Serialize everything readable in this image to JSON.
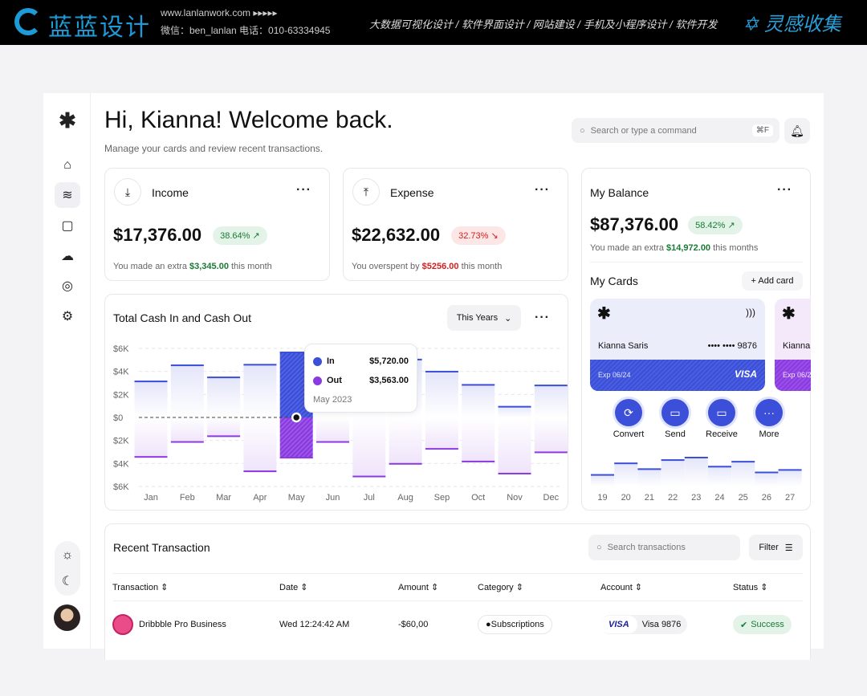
{
  "banner": {
    "logo": "蓝蓝设计",
    "site": "www.lanlanwork.com ▸▸▸▸▸",
    "contact": "微信：ben_lanlan    电话：010-63334945",
    "services": "大数据可视化设计  /  软件界面设计  /  网站建设  /  手机及小程序设计  /  软件开发",
    "brand": "灵感收集"
  },
  "header": {
    "title": "Hi, Kianna! Welcome back.",
    "subtitle": "Manage your cards and review recent transactions.",
    "search_placeholder": "Search or type a command",
    "shortcut": "⌘F"
  },
  "sidebar": {
    "items": [
      "home-icon",
      "layers-icon",
      "wallet-icon",
      "cloud-upload-icon",
      "chat-icon",
      "settings-icon"
    ],
    "active": "layers-icon",
    "theme": [
      "light",
      "dark"
    ]
  },
  "income": {
    "label": "Income",
    "amount": "$17,376.00",
    "change": "38.64%",
    "note_pre": "You made an extra ",
    "note_val": "$3,345.00",
    "note_post": " this month"
  },
  "expense": {
    "label": "Expense",
    "amount": "$22,632.00",
    "change": "32.73%",
    "note_pre": "You overspent by ",
    "note_val": "$5256.00",
    "note_post": " this month"
  },
  "balance": {
    "label": "My Balance",
    "amount": "$87,376.00",
    "change": "58.42%",
    "note_pre": "You made an extra ",
    "note_val": "$14,972.00",
    "note_post": " this months"
  },
  "cards": {
    "title": "My Cards",
    "add": "+ Add card",
    "items": [
      {
        "holder": "Kianna Saris",
        "number": "•••• •••• 9876",
        "exp": "Exp 06/24",
        "brand": "VISA"
      },
      {
        "holder": "Kianna",
        "exp": "Exp 06/2"
      }
    ],
    "actions": [
      "Convert",
      "Send",
      "Receive",
      "More"
    ]
  },
  "mini_chart": {
    "days": [
      "19",
      "20",
      "21",
      "22",
      "23",
      "24",
      "25",
      "26",
      "27"
    ],
    "values": [
      15,
      29,
      22,
      33,
      36,
      25,
      31,
      18,
      21
    ]
  },
  "chart_data": {
    "type": "bar",
    "title": "Total Cash In and Cash Out",
    "period": "This Years",
    "categories": [
      "Jan",
      "Feb",
      "Mar",
      "Apr",
      "May",
      "Jun",
      "Jul",
      "Aug",
      "Sep",
      "Oct",
      "Nov",
      "Dec"
    ],
    "yticks": [
      "$6K",
      "$4K",
      "$2K",
      "$0",
      "$2K",
      "$4K",
      "$6K"
    ],
    "ylim": [
      -6000,
      6000
    ],
    "series": [
      {
        "name": "In",
        "color": "#3b4fd8",
        "values": [
          3200,
          4600,
          3550,
          4650,
          5720,
          4800,
          5000,
          5100,
          4050,
          2900,
          1000,
          2850
        ]
      },
      {
        "name": "Out",
        "color": "#8a3be0",
        "values": [
          3500,
          2200,
          1700,
          4750,
          3563,
          2200,
          5200,
          4100,
          2800,
          3900,
          4950,
          3100
        ]
      }
    ],
    "tooltip": {
      "in_label": "In",
      "in_value": "$5,720.00",
      "out_label": "Out",
      "out_value": "$3,563.00",
      "date": "May 2023"
    },
    "highlight": "May"
  },
  "transactions": {
    "title": "Recent Transaction",
    "search_placeholder": "Search transactions",
    "filter": "Filter",
    "columns": [
      "Transaction",
      "Date",
      "Amount",
      "Category",
      "Account",
      "Status"
    ],
    "rows": [
      {
        "name": "Dribbble Pro Business",
        "date": "Wed 12:24:42 AM",
        "amount": "-$60,00",
        "category": "Subscriptions",
        "account_brand": "VISA",
        "account": "Visa 9876",
        "status": "Success"
      }
    ]
  }
}
